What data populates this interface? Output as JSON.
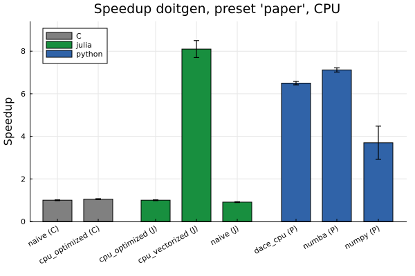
{
  "chart_data": {
    "type": "bar",
    "title": "Speedup doitgen, preset 'paper', CPU",
    "xlabel": "",
    "ylabel": "Speedup",
    "ylim": [
      0,
      9.4
    ],
    "yticks": [
      0,
      2,
      4,
      6,
      8
    ],
    "grid": true,
    "legend_position": "top-left",
    "series": [
      {
        "name": "C",
        "color": "#808080"
      },
      {
        "name": "julia",
        "color": "#188f3f"
      },
      {
        "name": "python",
        "color": "#3063a8"
      }
    ],
    "bars": [
      {
        "category": "naive (C)",
        "series": "C",
        "value": 1.0,
        "error": 0.02
      },
      {
        "category": "cpu_optimized (C)",
        "series": "C",
        "value": 1.05,
        "error": 0.02
      },
      {
        "category": "cpu_optimized (J)",
        "series": "julia",
        "value": 1.0,
        "error": 0.02
      },
      {
        "category": "cpu_vectorized (J)",
        "series": "julia",
        "value": 8.1,
        "error": 0.4
      },
      {
        "category": "naive (J)",
        "series": "julia",
        "value": 0.91,
        "error": 0.02
      },
      {
        "category": "dace_cpu (P)",
        "series": "python",
        "value": 6.5,
        "error": 0.08
      },
      {
        "category": "numba (P)",
        "series": "python",
        "value": 7.12,
        "error": 0.1
      },
      {
        "category": "numpy (P)",
        "series": "python",
        "value": 3.7,
        "error": 0.78
      }
    ]
  }
}
